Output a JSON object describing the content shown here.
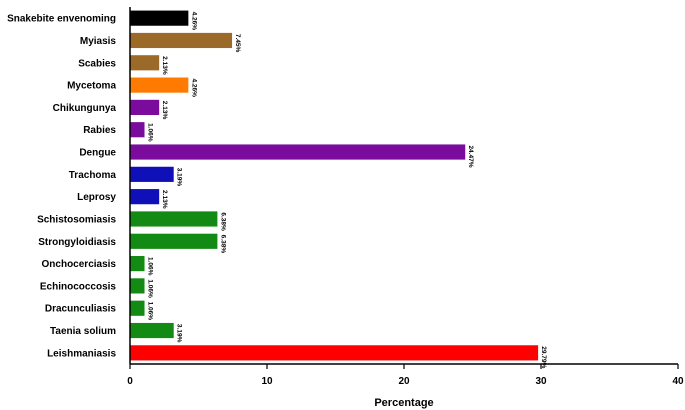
{
  "chart_data": {
    "type": "bar",
    "orientation": "horizontal",
    "xlabel": "Percentage",
    "xlim": [
      0,
      40
    ],
    "xticks": [
      0,
      10,
      20,
      30,
      40
    ],
    "grid": false,
    "categories": [
      "Snakebite envenoming",
      "Myiasis",
      "Scabies",
      "Mycetoma",
      "Chikungunya",
      "Rabies",
      "Dengue",
      "Trachoma",
      "Leprosy",
      "Schistosomiasis",
      "Strongyloidiasis",
      "Onchocerciasis",
      "Echinococcosis",
      "Dracunculiasis",
      "Taenia solium",
      "Leishmaniasis"
    ],
    "values": [
      4.26,
      7.45,
      2.13,
      4.26,
      2.13,
      1.06,
      24.47,
      3.19,
      2.13,
      6.38,
      6.38,
      1.06,
      1.06,
      1.06,
      3.19,
      29.79
    ],
    "value_labels": [
      "4.26%",
      "7.45%",
      "2.13%",
      "4.26%",
      "2.13%",
      "1.06%",
      "24.47%",
      "3.19%",
      "2.13%",
      "6.38%",
      "6.38%",
      "1.06%",
      "1.06%",
      "1.06%",
      "3.19%",
      "29.79%"
    ],
    "colors": [
      "#000000",
      "#9c6a28",
      "#9c6a28",
      "#ff7a00",
      "#7a0b9c",
      "#7a0b9c",
      "#7a0b9c",
      "#1010b8",
      "#1010b8",
      "#138a13",
      "#138a13",
      "#138a13",
      "#138a13",
      "#138a13",
      "#138a13",
      "#ff0000"
    ]
  }
}
